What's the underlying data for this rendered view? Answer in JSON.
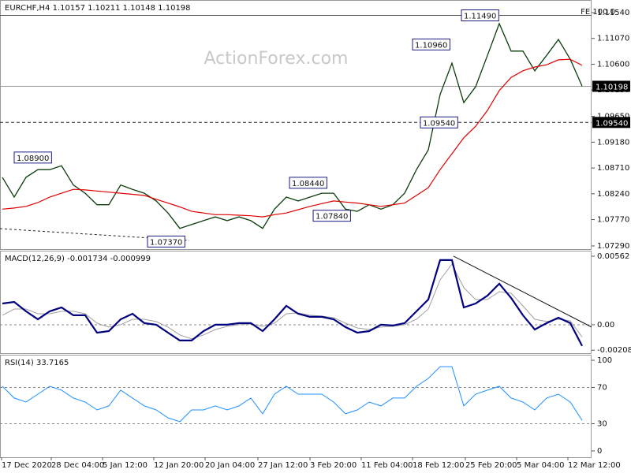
{
  "chart_data": [
    {
      "type": "line",
      "title": "EURCHF,H4 1.10157 1.10211 1.10148 1.10198",
      "watermark": "ActionForex.com",
      "fe_label": "FE 100.0",
      "x": [
        0,
        1,
        2,
        3,
        4,
        5,
        6,
        7,
        8,
        9,
        10,
        11,
        12,
        13,
        14,
        15,
        16,
        17,
        18,
        19,
        20,
        21,
        22,
        23,
        24,
        25,
        26,
        27,
        28,
        29,
        30,
        31,
        32,
        33,
        34,
        35,
        36,
        37,
        38,
        39,
        40,
        41,
        42,
        43,
        44,
        45,
        46,
        47,
        48,
        49
      ],
      "xlim": [
        -0.2,
        49.8
      ],
      "ylim": [
        1.07232,
        1.1177
      ],
      "yticks": [
        {
          "value": 1.1154,
          "label": "1.11540"
        },
        {
          "value": 1.1107,
          "label": "1.11070"
        },
        {
          "value": 1.106,
          "label": "1.10600"
        },
        {
          "value": 1.1013,
          "label": "1.10130"
        },
        {
          "value": 1.0965,
          "label": "1.09650"
        },
        {
          "value": 1.0918,
          "label": "1.09180"
        },
        {
          "value": 1.0871,
          "label": "1.08710"
        },
        {
          "value": 1.0824,
          "label": "1.08240"
        },
        {
          "value": 1.0777,
          "label": "1.07770"
        },
        {
          "value": 1.0729,
          "label": "1.07290"
        }
      ],
      "series": [
        {
          "color": "#0b3d0b",
          "width": 1.3,
          "values": [
            1.0854,
            1.0818,
            1.0854,
            1.0868,
            1.0868,
            1.0875,
            1.084,
            1.0825,
            1.0804,
            1.0804,
            1.084,
            1.0832,
            1.0825,
            1.0811,
            1.0789,
            1.0761,
            1.0768,
            1.0775,
            1.0782,
            1.0775,
            1.0782,
            1.0775,
            1.0761,
            1.0796,
            1.0818,
            1.0811,
            1.0818,
            1.0825,
            1.0825,
            1.0796,
            1.0792,
            1.0804,
            1.0796,
            1.0804,
            1.0825,
            1.0868,
            1.0904,
            1.1005,
            1.1062,
            1.099,
            1.1019,
            1.1076,
            1.1134,
            1.1084,
            1.1084,
            1.1048,
            1.1076,
            1.1105,
            1.1069,
            1.102
          ]
        },
        {
          "color": "#e00000",
          "width": 1.2,
          "values": [
            1.0796,
            1.0798,
            1.0801,
            1.0808,
            1.0818,
            1.0825,
            1.0832,
            1.0831,
            1.0829,
            1.0827,
            1.0825,
            1.0823,
            1.0821,
            1.0814,
            1.0807,
            1.08,
            1.0792,
            1.0789,
            1.0786,
            1.0786,
            1.0785,
            1.0784,
            1.0782,
            1.0786,
            1.0789,
            1.0795,
            1.0801,
            1.0806,
            1.0811,
            1.0809,
            1.0807,
            1.0804,
            1.0801,
            1.0804,
            1.0807,
            1.0821,
            1.0835,
            1.0868,
            1.0897,
            1.0926,
            1.0947,
            1.0976,
            1.1012,
            1.1036,
            1.1048,
            1.1055,
            1.1059,
            1.1068,
            1.1069,
            1.1058
          ]
        }
      ],
      "hlines": [
        {
          "value": 1.1149,
          "color": "#555555",
          "dash": false
        },
        {
          "value": 1.10198,
          "color": "#9a9a9a",
          "dash": false
        },
        {
          "value": 1.0954,
          "color": "#222222",
          "dash": true
        }
      ],
      "trendlines": [
        {
          "x": [
            -0.2,
            15.8
          ],
          "y": [
            1.07605,
            1.0739
          ],
          "color": "#222222",
          "dash": true
        }
      ],
      "annotations": [
        {
          "x": 1.0,
          "value": 1.089,
          "label": "1.08900"
        },
        {
          "x": 12.27,
          "value": 1.0737,
          "label": "1.07370"
        },
        {
          "x": 24.27,
          "value": 1.0844,
          "label": "1.08440"
        },
        {
          "x": 26.27,
          "value": 1.0784,
          "label": "1.07840"
        },
        {
          "x": 35.33,
          "value": 1.0954,
          "label": "1.09540"
        },
        {
          "x": 34.67,
          "value": 1.1096,
          "label": "1.10960"
        },
        {
          "x": 38.8,
          "value": 1.1149,
          "label": "1.11490"
        }
      ],
      "price_labels": [
        {
          "value": 1.10198,
          "label": "1.10198"
        },
        {
          "value": 1.0954,
          "label": "1.09540"
        }
      ]
    },
    {
      "type": "line",
      "title": "MACD(12,26,9) -0.001734 -0.000999",
      "x": [
        0,
        1,
        2,
        3,
        4,
        5,
        6,
        7,
        8,
        9,
        10,
        11,
        12,
        13,
        14,
        15,
        16,
        17,
        18,
        19,
        20,
        21,
        22,
        23,
        24,
        25,
        26,
        27,
        28,
        29,
        30,
        31,
        32,
        33,
        34,
        35,
        36,
        37,
        38,
        39,
        40,
        41,
        42,
        43,
        44,
        45,
        46,
        47,
        48,
        49
      ],
      "xlim": [
        -0.2,
        49.8
      ],
      "ylim": [
        -0.00233,
        0.00607
      ],
      "yticks": [
        0.00562,
        {
          "value": 0,
          "label": "0.00"
        },
        -0.002085
      ],
      "levels": [
        0
      ],
      "series": [
        {
          "color": "#a0a0a0",
          "width": 1,
          "values": [
            0.00078,
            0.00129,
            0.00129,
            0.0009,
            0.0009,
            0.0011,
            0.0011,
            0.0009,
            0.00013,
            -0.00019,
            0,
            0.00045,
            0.00045,
            0.00026,
            -0.00019,
            -0.00084,
            -0.00116,
            -0.00084,
            -0.00039,
            -0.00013,
            0,
            6e-05,
            -0.00013,
            0.00013,
            0.0009,
            0.00097,
            0.00078,
            0.00071,
            0.00058,
            0.00013,
            -0.00026,
            -0.00039,
            -0.00019,
            -0.00013,
            0,
            0.00045,
            0.00129,
            0.00368,
            0.00497,
            0.00304,
            0.00207,
            0.00207,
            0.00271,
            0.00258,
            0.00155,
            0.00045,
            0.00026,
            0.00045,
            0.00032,
            -0.000999
          ]
        },
        {
          "color": "#00007f",
          "width": 2.2,
          "values": [
            0.00174,
            0.00187,
            0.0011,
            0.00045,
            0.0011,
            0.00142,
            0.00078,
            0.00078,
            -0.00065,
            -0.00052,
            0.00045,
            0.0009,
            0.00013,
            0,
            -0.00065,
            -0.00129,
            -0.00129,
            -0.00052,
            0,
            0,
            0.00013,
            0.00013,
            -0.00052,
            0.00045,
            0.00155,
            0.0009,
            0.00065,
            0.00065,
            0.00045,
            -0.00019,
            -0.00065,
            -0.00052,
            0,
            -6e-05,
            0.00013,
            0.0011,
            0.00207,
            0.0053,
            0.0053,
            0.00142,
            0.00174,
            0.00239,
            0.00336,
            0.0022,
            0.00078,
            -0.00039,
            0.00013,
            0.00058,
            0.00013,
            -0.001734
          ]
        }
      ],
      "trendlines": [
        {
          "x": [
            38.13,
            49.8
          ],
          "y": [
            0.00562,
            -0.00019
          ],
          "color": "#111111",
          "dash": false
        }
      ]
    },
    {
      "type": "line",
      "title": "RSI(14) 33.7165",
      "x": [
        0,
        1,
        2,
        3,
        4,
        5,
        6,
        7,
        8,
        9,
        10,
        11,
        12,
        13,
        14,
        15,
        16,
        17,
        18,
        19,
        20,
        21,
        22,
        23,
        24,
        25,
        26,
        27,
        28,
        29,
        30,
        31,
        32,
        33,
        34,
        35,
        36,
        37,
        38,
        39,
        40,
        41,
        42,
        43,
        44,
        45,
        46,
        47,
        48,
        49
      ],
      "xlim": [
        -0.2,
        49.8
      ],
      "ylim": [
        -7,
        106.1
      ],
      "yticks": [
        100,
        70,
        30,
        0
      ],
      "levels": [
        70,
        30
      ],
      "series": [
        {
          "color": "#1e90ff",
          "width": 1,
          "values": [
            71.3,
            58.3,
            53.9,
            62.6,
            71.3,
            67,
            58.3,
            53.9,
            45.2,
            49.6,
            67,
            58.3,
            49.6,
            45.2,
            36.5,
            32.2,
            45.2,
            45.2,
            49.6,
            45.2,
            49.6,
            58.3,
            40.9,
            62.6,
            71.3,
            62.6,
            62.6,
            62.6,
            53.9,
            40.9,
            45.2,
            53.9,
            49.6,
            58.3,
            58.3,
            71.3,
            80,
            93,
            93,
            49.6,
            62.6,
            67,
            71.3,
            58.3,
            53.9,
            45.2,
            58.3,
            62.6,
            53.9,
            33.7
          ]
        }
      ],
      "xticks": [
        {
          "value": -0.07,
          "label": "17 Dec 2020"
        },
        {
          "value": 4.13,
          "label": "28 Dec 04:00"
        },
        {
          "value": 8.47,
          "label": "5 Jan 12:00"
        },
        {
          "value": 12.8,
          "label": "12 Jan 20:00"
        },
        {
          "value": 17.13,
          "label": "20 Jan 04:00"
        },
        {
          "value": 21.6,
          "label": "27 Jan 12:00"
        },
        {
          "value": 26,
          "label": "3 Feb 20:00"
        },
        {
          "value": 30.33,
          "label": "11 Feb 04:00"
        },
        {
          "value": 34.67,
          "label": "18 Feb 12:00"
        },
        {
          "value": 39.13,
          "label": "25 Feb 20:00"
        },
        {
          "value": 43.47,
          "label": "5 Mar 04:00"
        },
        {
          "value": 47.8,
          "label": "12 Mar 12:00"
        }
      ]
    }
  ]
}
